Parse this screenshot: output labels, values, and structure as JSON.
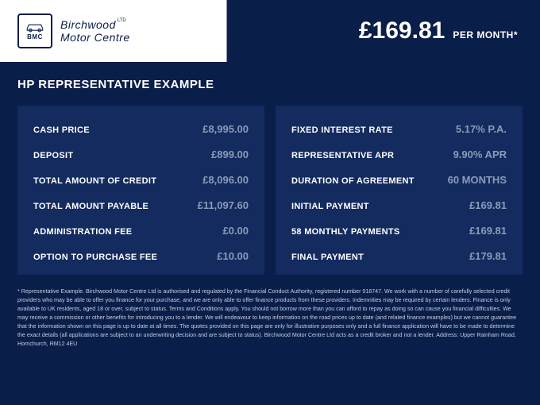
{
  "header": {
    "logo": {
      "abbr": "BMC",
      "line1": "Birchwood",
      "line2": "Motor Centre",
      "ltd": "LTD"
    },
    "price": "£169.81",
    "price_suffix": "PER MONTH*"
  },
  "title": "HP REPRESENTATIVE EXAMPLE",
  "left_panel": [
    {
      "label": "CASH PRICE",
      "value": "£8,995.00"
    },
    {
      "label": "DEPOSIT",
      "value": "£899.00"
    },
    {
      "label": "TOTAL AMOUNT OF CREDIT",
      "value": "£8,096.00"
    },
    {
      "label": "TOTAL AMOUNT PAYABLE",
      "value": "£11,097.60"
    },
    {
      "label": "ADMINISTRATION FEE",
      "value": "£0.00"
    },
    {
      "label": "OPTION TO PURCHASE FEE",
      "value": "£10.00"
    }
  ],
  "right_panel": [
    {
      "label": "FIXED INTEREST RATE",
      "value": "5.17% P.A."
    },
    {
      "label": "REPRESENTATIVE APR",
      "value": "9.90% APR"
    },
    {
      "label": "DURATION OF AGREEMENT",
      "value": "60 MONTHS"
    },
    {
      "label": "INITIAL PAYMENT",
      "value": "£169.81"
    },
    {
      "label": "58 MONTHLY PAYMENTS",
      "value": "£169.81"
    },
    {
      "label": "FINAL PAYMENT",
      "value": "£179.81"
    }
  ],
  "disclaimer": "* Representative Example. Birchwood Motor Centre Ltd is authorised and regulated by the Financial Conduct Authority, registered number 918747. We work with a number of carefully selected credit providers who may be able to offer you finance for your purchase, and we are only able to offer finance products from these providers. Indemnities may be required by certain lenders. Finance is only available to UK residents, aged 18 or over, subject to status. Terms and Conditions apply. You should not borrow more than you can afford to repay as doing so can cause you financial difficulties. We may receive a commission or other benefits for introducing you to a lender. We will endeavour to keep information on the road prices up to date (and related finance examples) but we cannot guarantee that the information shown on this page is up to date at all times. The quotes provided on this page are only for illustrative purposes only and a full finance application will have to be made to determine the exact details (all applications are subject to an underwriting decision and are subject to status). Birchwood Motor Centre Ltd acts as a credit broker and not a lender. Address: Upper Rainham Road, Hornchurch, RM12 4EU",
  "colors": {
    "dark_blue": "#0a1e4a",
    "panel_blue": "#132b5e",
    "value_gray": "#8a9bb8",
    "white": "#ffffff",
    "disclaimer_color": "#c5cde0"
  }
}
